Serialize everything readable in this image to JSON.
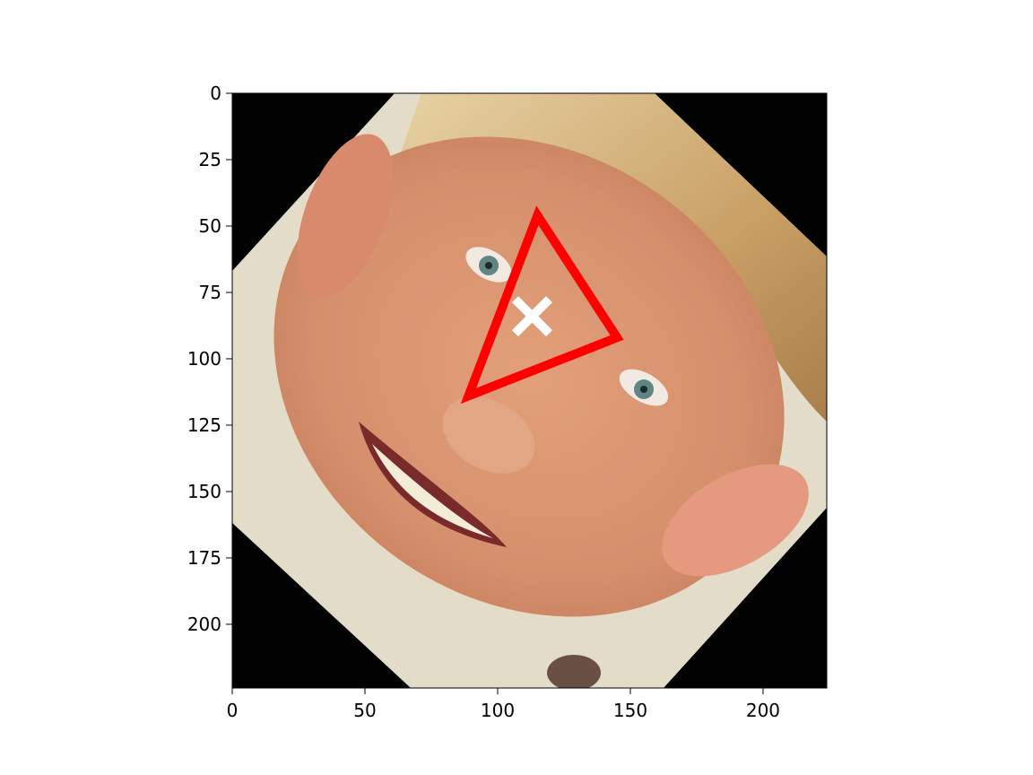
{
  "axes": {
    "x_ticks": [
      0,
      50,
      100,
      150,
      200
    ],
    "y_ticks": [
      0,
      25,
      50,
      75,
      100,
      125,
      150,
      175,
      200
    ],
    "x_range": [
      0,
      224
    ],
    "y_range": [
      0,
      224
    ]
  },
  "image": {
    "subject": "rotated face photo of a smiling man with blond hair",
    "rotation_deg": 45,
    "background_color": "#000000"
  },
  "overlay": {
    "triangle_color": "#ff0000",
    "marker_color": "#ffffff",
    "triangle_vertices": [
      [
        115,
        46
      ],
      [
        145,
        92
      ],
      [
        89,
        114
      ]
    ],
    "marker_point": [
      113,
      84
    ]
  }
}
